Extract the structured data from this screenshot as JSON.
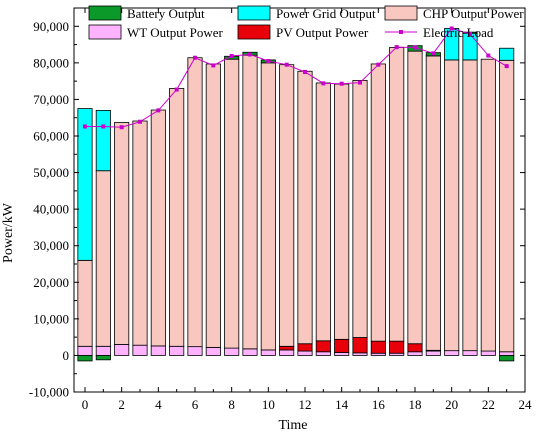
{
  "chart_data": {
    "type": "bar",
    "subtype": "stacked-bar-with-line",
    "xlabel": "Time",
    "ylabel": "Power/kW",
    "xlim": [
      -0.6,
      24
    ],
    "ylim": [
      -10000,
      95000
    ],
    "x_ticks": [
      "0",
      "2",
      "4",
      "6",
      "8",
      "10",
      "12",
      "14",
      "16",
      "18",
      "20",
      "22",
      "24"
    ],
    "y_ticks": [
      "-10,000",
      "0",
      "10,000",
      "20,000",
      "30,000",
      "40,000",
      "50,000",
      "60,000",
      "70,000",
      "80,000",
      "90,000"
    ],
    "legend_position": "top",
    "x": [
      0,
      1,
      2,
      3,
      4,
      5,
      6,
      7,
      8,
      9,
      10,
      11,
      12,
      13,
      14,
      15,
      16,
      17,
      18,
      19,
      20,
      21,
      22,
      23
    ],
    "series": [
      {
        "name": "WT Output Power",
        "color": "#ffb3ff",
        "values": [
          2500,
          2500,
          3000,
          2800,
          2600,
          2500,
          2400,
          2200,
          2000,
          1800,
          1500,
          1500,
          1200,
          1000,
          800,
          700,
          600,
          600,
          1000,
          1200,
          1300,
          1300,
          1200,
          1000
        ]
      },
      {
        "name": "PV Output Power",
        "color": "#e8000b",
        "values": [
          0,
          0,
          0,
          0,
          0,
          0,
          0,
          0,
          0,
          0,
          0,
          1000,
          2000,
          3000,
          3600,
          4200,
          3300,
          3300,
          2200,
          200,
          0,
          0,
          0,
          0
        ]
      },
      {
        "name": "CHP Output Power",
        "color": "#f8c8c0",
        "values": [
          23500,
          48000,
          60700,
          61300,
          64500,
          70500,
          79000,
          77500,
          79000,
          80300,
          78500,
          77000,
          74500,
          70500,
          69800,
          70300,
          75800,
          80300,
          80000,
          80500,
          79500,
          79500,
          79800,
          79700
        ]
      },
      {
        "name": "Power Grid Output",
        "color": "#00ffff",
        "values": [
          41500,
          16500,
          0,
          0,
          0,
          0,
          0,
          0,
          0,
          0,
          0,
          0,
          0,
          0,
          0,
          0,
          0,
          0,
          0,
          0,
          8600,
          7300,
          0,
          3300
        ]
      },
      {
        "name": "Battery Output",
        "color": "#0b9a2a",
        "values": [
          -1500,
          -1200,
          0,
          0,
          0,
          0,
          0,
          0,
          800,
          800,
          800,
          0,
          0,
          0,
          0,
          0,
          0,
          0,
          1500,
          900,
          0,
          300,
          0,
          -1500
        ]
      }
    ],
    "line": {
      "name": "Electric Load",
      "color": "#cc00cc",
      "values": [
        62600,
        62600,
        62400,
        63900,
        67000,
        72700,
        81400,
        79300,
        81900,
        82300,
        80500,
        79500,
        77500,
        74400,
        74300,
        74600,
        79500,
        84300,
        84200,
        82600,
        89400,
        87900,
        82000,
        79100
      ]
    },
    "legend": [
      {
        "name": "Battery Output",
        "color": "#0b9a2a",
        "kind": "box"
      },
      {
        "name": "Power Grid Output",
        "color": "#00ffff",
        "kind": "box"
      },
      {
        "name": "CHP Output Power",
        "color": "#f8c8c0",
        "kind": "box"
      },
      {
        "name": "WT Output Power",
        "color": "#ffb3ff",
        "kind": "box"
      },
      {
        "name": "PV Output Power",
        "color": "#e8000b",
        "kind": "box"
      },
      {
        "name": "Electric Load",
        "color": "#cc00cc",
        "kind": "line"
      }
    ]
  }
}
